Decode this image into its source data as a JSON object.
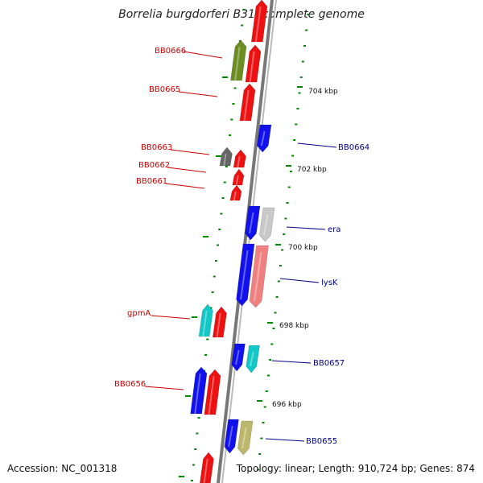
{
  "title": "Borrelia burgdorferi B31, complete genome",
  "accession": "Accession: NC_001318",
  "stats": "Topology: linear; Length: 910,724 bp; Genes: 874",
  "scale_labels": [
    "704 kbp",
    "702 kbp",
    "700 kbp",
    "698 kbp",
    "696 kbp"
  ],
  "left_genes": [
    "BB0666",
    "BB0665",
    "BB0663",
    "BB0662",
    "BB0661",
    "gpmA",
    "BB0656"
  ],
  "right_genes": [
    "BB0664",
    "era",
    "lysK",
    "BB0657",
    "BB0655"
  ],
  "colors": {
    "red": "#ee1111",
    "blue": "#1111ee",
    "olive": "#6b8e23",
    "gray": "#666666",
    "lightgray": "#c8c8c8",
    "pink": "#f08080",
    "cyan": "#11c8c8",
    "khaki": "#bdb76b",
    "backbone": "#777777",
    "tick": "#008800",
    "left_label": "#cc0000",
    "right_label": "#00008b"
  }
}
